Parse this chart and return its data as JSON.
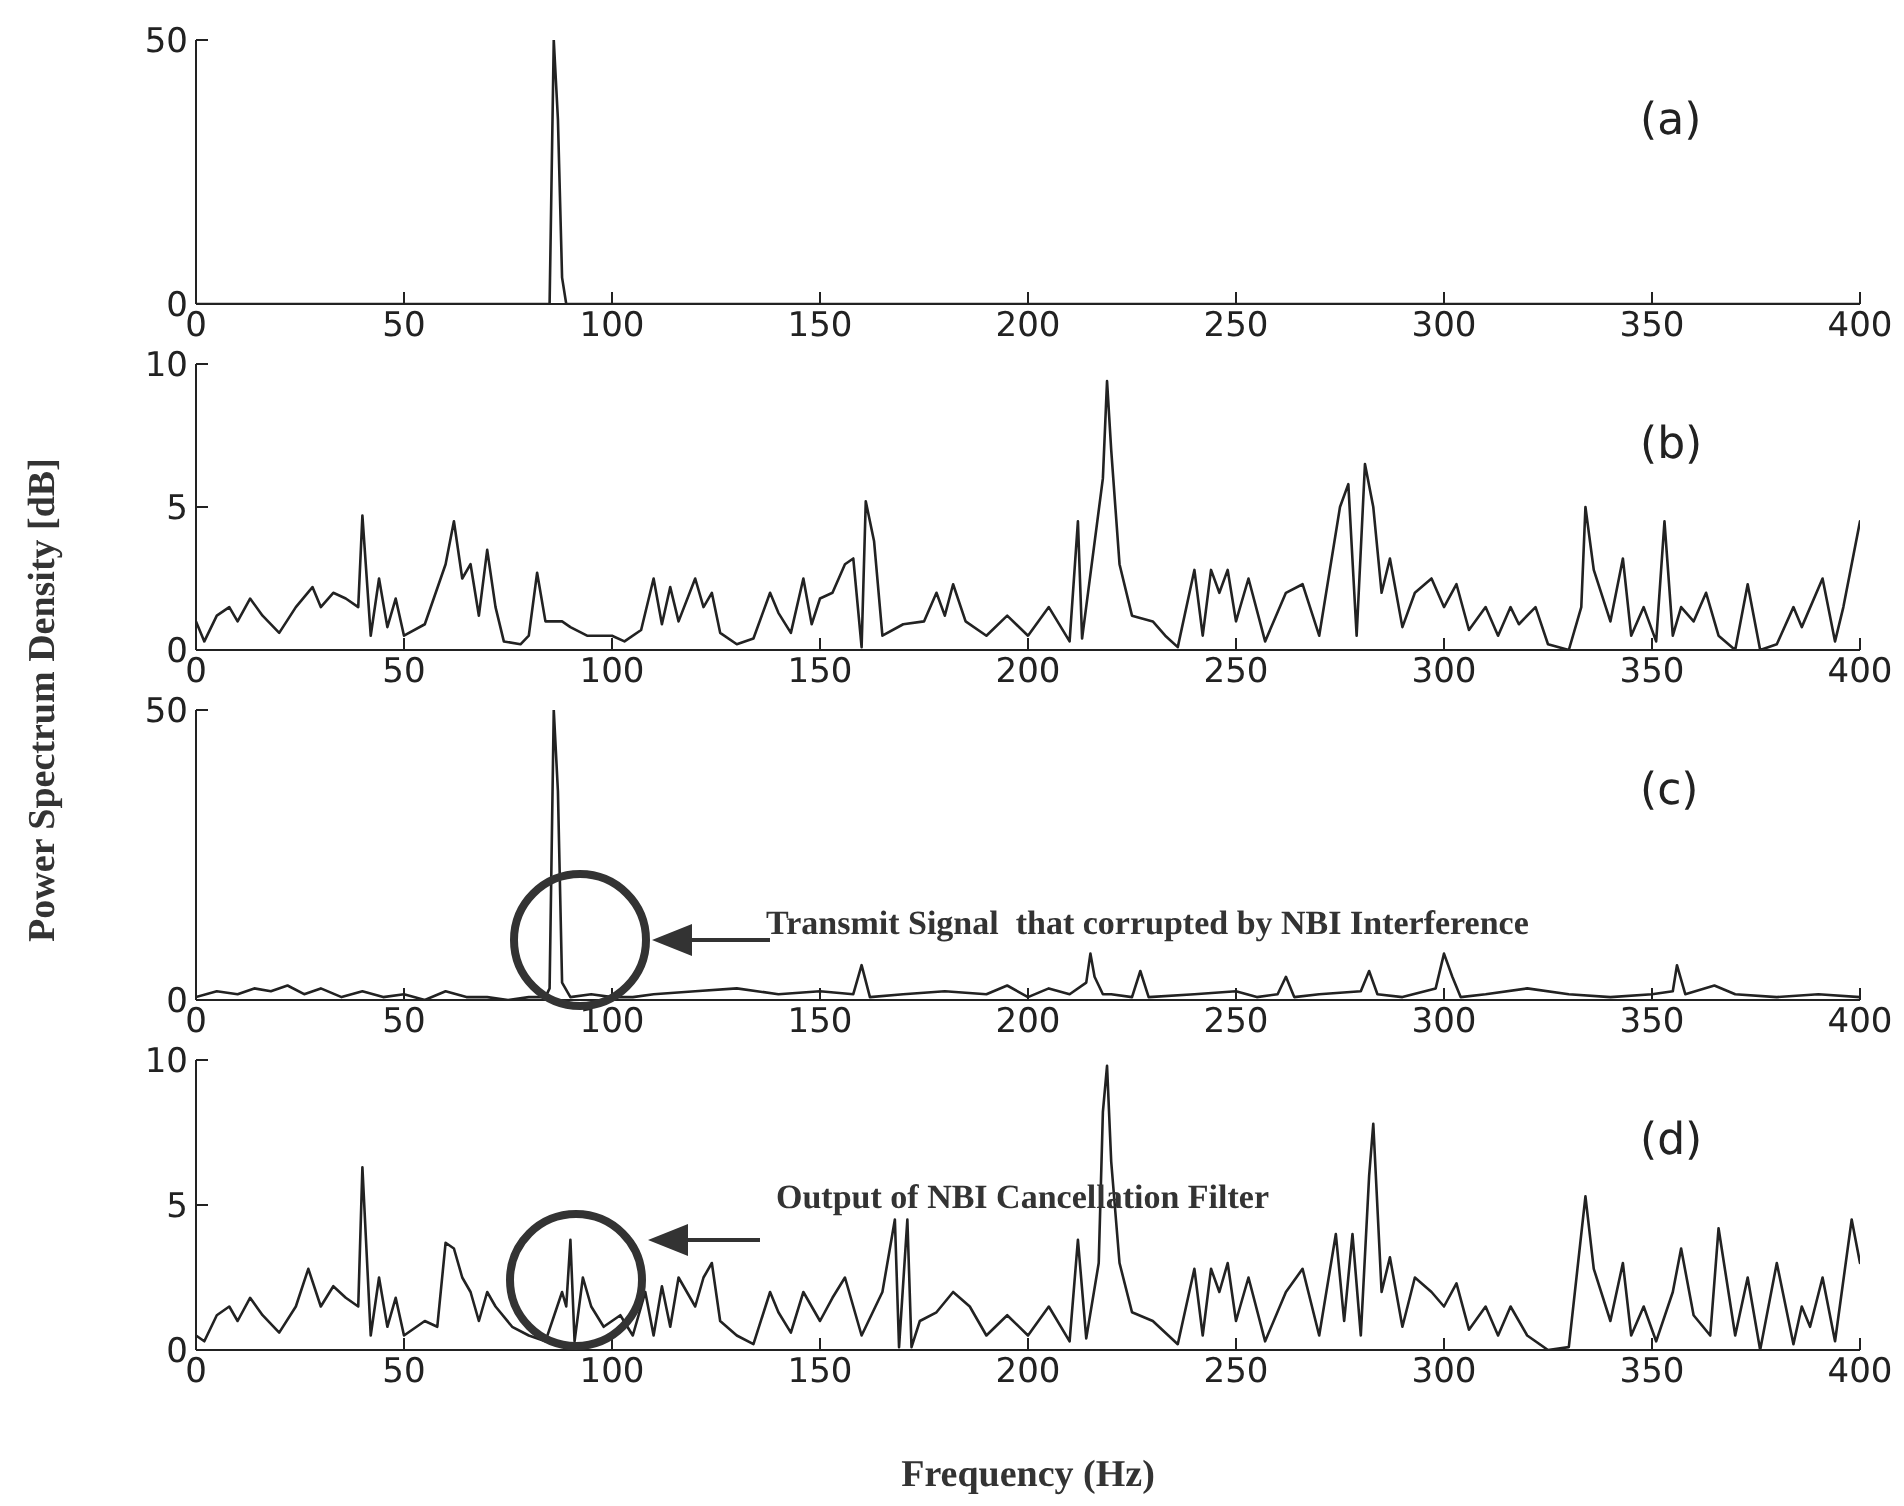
{
  "chart_data": [
    {
      "type": "line",
      "title": "(a)",
      "ylabel": "Power Spectrum Density [dB]",
      "xlim": [
        0,
        400
      ],
      "xticks": [
        0,
        50,
        100,
        150,
        200,
        250,
        300,
        350,
        400
      ],
      "ylim": [
        0,
        50
      ],
      "yticks": [
        0,
        50
      ],
      "marker": "none",
      "series": [
        {
          "color": "#222222",
          "x": [
            0,
            84,
            85,
            86,
            87,
            88,
            89,
            400
          ],
          "values": [
            0,
            0,
            0,
            50,
            35,
            5,
            0,
            0
          ]
        }
      ]
    },
    {
      "type": "line",
      "title": "(b)",
      "xlim": [
        0,
        400
      ],
      "xticks": [
        0,
        50,
        100,
        150,
        200,
        250,
        300,
        350,
        400
      ],
      "ylim": [
        0,
        10
      ],
      "yticks": [
        0,
        5,
        10
      ],
      "marker": "none",
      "series": [
        {
          "color": "#222222",
          "x": [
            0,
            2,
            5,
            8,
            10,
            13,
            16,
            20,
            24,
            28,
            30,
            33,
            36,
            39,
            40,
            42,
            44,
            46,
            48,
            50,
            55,
            60,
            62,
            64,
            66,
            68,
            70,
            72,
            74,
            78,
            80,
            82,
            84,
            88,
            90,
            94,
            100,
            103,
            107,
            110,
            112,
            114,
            116,
            120,
            122,
            124,
            126,
            130,
            134,
            138,
            140,
            143,
            146,
            148,
            150,
            153,
            156,
            158,
            160,
            161,
            163,
            165,
            170,
            175,
            178,
            180,
            182,
            185,
            190,
            195,
            200,
            205,
            210,
            212,
            213,
            218,
            219,
            220,
            222,
            225,
            230,
            233,
            236,
            240,
            242,
            244,
            246,
            248,
            250,
            253,
            257,
            262,
            266,
            270,
            275,
            277,
            279,
            281,
            283,
            285,
            287,
            290,
            293,
            297,
            300,
            303,
            306,
            310,
            313,
            316,
            318,
            322,
            325,
            330,
            333,
            334,
            336,
            340,
            343,
            345,
            348,
            351,
            353,
            355,
            357,
            360,
            363,
            366,
            370,
            373,
            376,
            380,
            384,
            386,
            391,
            394,
            396,
            400
          ],
          "values": [
            1,
            0.3,
            1.2,
            1.5,
            1,
            1.8,
            1.2,
            0.6,
            1.5,
            2.2,
            1.5,
            2,
            1.8,
            1.5,
            4.7,
            0.5,
            2.5,
            0.8,
            1.8,
            0.5,
            0.9,
            3,
            4.5,
            2.5,
            3,
            1.2,
            3.5,
            1.5,
            0.3,
            0.2,
            0.5,
            2.7,
            1,
            1,
            0.8,
            0.5,
            0.5,
            0.3,
            0.7,
            2.5,
            0.9,
            2.2,
            1,
            2.5,
            1.5,
            2,
            0.6,
            0.2,
            0.4,
            2,
            1.3,
            0.6,
            2.5,
            0.9,
            1.8,
            2,
            3,
            3.2,
            0.1,
            5.2,
            3.8,
            0.5,
            0.9,
            1,
            2,
            1.2,
            2.3,
            1,
            0.5,
            1.2,
            0.5,
            1.5,
            0.3,
            4.5,
            0.4,
            6,
            9.4,
            7,
            3,
            1.2,
            1,
            0.5,
            0.1,
            2.8,
            0.5,
            2.8,
            2,
            2.8,
            1,
            2.5,
            0.3,
            2,
            2.3,
            0.5,
            5,
            5.8,
            0.5,
            6.5,
            5,
            2,
            3.2,
            0.8,
            2,
            2.5,
            1.5,
            2.3,
            0.7,
            1.5,
            0.5,
            1.5,
            0.9,
            1.5,
            0.2,
            0,
            1.5,
            5,
            2.8,
            1,
            3.2,
            0.5,
            1.5,
            0.3,
            4.5,
            0.5,
            1.5,
            1,
            2,
            0.5,
            0,
            2.3,
            0,
            0.2,
            1.5,
            0.8,
            2.5,
            0.3,
            1.5,
            4.5
          ]
        }
      ]
    },
    {
      "type": "line",
      "title": "(c)",
      "annotations": [
        "Transmit Signal  that corrupted by NBI Interference"
      ],
      "xlim": [
        0,
        400
      ],
      "xticks": [
        0,
        50,
        100,
        150,
        200,
        250,
        300,
        350,
        400
      ],
      "ylim": [
        0,
        50
      ],
      "yticks": [
        0,
        50
      ],
      "marker": "none",
      "series": [
        {
          "color": "#222222",
          "x": [
            0,
            5,
            10,
            14,
            18,
            22,
            26,
            30,
            35,
            40,
            45,
            50,
            55,
            60,
            65,
            70,
            75,
            80,
            84,
            85,
            86,
            87,
            88,
            90,
            95,
            100,
            105,
            110,
            120,
            130,
            140,
            150,
            158,
            160,
            162,
            170,
            180,
            190,
            195,
            200,
            205,
            210,
            214,
            215,
            216,
            218,
            220,
            225,
            227,
            229,
            240,
            250,
            255,
            260,
            262,
            264,
            270,
            280,
            282,
            284,
            290,
            298,
            300,
            302,
            304,
            310,
            320,
            330,
            340,
            350,
            355,
            356,
            358,
            365,
            370,
            380,
            390,
            400
          ],
          "values": [
            0.5,
            1.5,
            1,
            2,
            1.5,
            2.5,
            1,
            2,
            0.5,
            1.5,
            0.5,
            1,
            0,
            1.5,
            0.5,
            0.5,
            0,
            0.5,
            0.5,
            2,
            50,
            36,
            3,
            0.5,
            1,
            0.5,
            0.5,
            1,
            1.5,
            2,
            1,
            1.5,
            1,
            6,
            0.5,
            1,
            1.5,
            1,
            2.5,
            0.5,
            2,
            1,
            3,
            8,
            4,
            1,
            1,
            0.5,
            5,
            0.5,
            1,
            1.5,
            0.5,
            1,
            4,
            0.5,
            1,
            1.5,
            5,
            1,
            0.5,
            2,
            8,
            4,
            0.5,
            1,
            2,
            1,
            0.5,
            1,
            1.5,
            6,
            1,
            2.5,
            1,
            0.5,
            1,
            0.5
          ]
        }
      ]
    },
    {
      "type": "line",
      "title": "(d)",
      "xlabel": "Frequency (Hz)",
      "annotations": [
        "Output of NBI Cancellation Filter"
      ],
      "xlim": [
        0,
        400
      ],
      "xticks": [
        0,
        50,
        100,
        150,
        200,
        250,
        300,
        350,
        400
      ],
      "ylim": [
        0,
        10
      ],
      "yticks": [
        0,
        5,
        10
      ],
      "marker": "none",
      "series": [
        {
          "color": "#222222",
          "x": [
            0,
            2,
            5,
            8,
            10,
            13,
            16,
            20,
            24,
            27,
            30,
            33,
            36,
            39,
            40,
            42,
            44,
            46,
            48,
            50,
            55,
            58,
            60,
            62,
            64,
            66,
            68,
            70,
            72,
            76,
            80,
            84,
            88,
            89,
            90,
            91,
            93,
            95,
            98,
            102,
            105,
            108,
            110,
            112,
            114,
            116,
            120,
            122,
            124,
            126,
            130,
            134,
            138,
            140,
            143,
            146,
            150,
            153,
            156,
            160,
            165,
            168,
            169,
            171,
            172,
            174,
            178,
            182,
            186,
            190,
            195,
            200,
            205,
            210,
            212,
            214,
            217,
            218,
            219,
            220,
            222,
            225,
            230,
            236,
            240,
            242,
            244,
            246,
            248,
            250,
            253,
            257,
            262,
            266,
            270,
            274,
            276,
            278,
            280,
            282,
            283,
            285,
            287,
            290,
            293,
            297,
            300,
            303,
            306,
            310,
            313,
            316,
            320,
            325,
            330,
            334,
            336,
            340,
            343,
            345,
            348,
            351,
            355,
            357,
            360,
            364,
            366,
            370,
            373,
            376,
            380,
            384,
            386,
            388,
            391,
            394,
            398,
            400
          ],
          "values": [
            0.5,
            0.3,
            1.2,
            1.5,
            1,
            1.8,
            1.2,
            0.6,
            1.5,
            2.8,
            1.5,
            2.2,
            1.8,
            1.5,
            6.3,
            0.5,
            2.5,
            0.8,
            1.8,
            0.5,
            1,
            0.8,
            3.7,
            3.5,
            2.5,
            2,
            1,
            2,
            1.5,
            0.8,
            0.5,
            0.3,
            2,
            1.5,
            3.8,
            0.3,
            2.5,
            1.5,
            0.8,
            1.2,
            0.5,
            2,
            0.5,
            2.2,
            0.8,
            2.5,
            1.5,
            2.5,
            3,
            1,
            0.5,
            0.2,
            2,
            1.3,
            0.6,
            2,
            1,
            1.8,
            2.5,
            0.5,
            2,
            4.5,
            0.1,
            4.5,
            0.1,
            1,
            1.3,
            2,
            1.5,
            0.5,
            1.2,
            0.5,
            1.5,
            0.3,
            3.8,
            0.4,
            3,
            8.2,
            9.8,
            6.5,
            3,
            1.3,
            1,
            0.2,
            2.8,
            0.5,
            2.8,
            2,
            3,
            1,
            2.5,
            0.3,
            2,
            2.8,
            0.5,
            4,
            1,
            4,
            0.5,
            6,
            7.8,
            2,
            3.2,
            0.8,
            2.5,
            2,
            1.5,
            2.3,
            0.7,
            1.5,
            0.5,
            1.5,
            0.5,
            0,
            0.1,
            5.3,
            2.8,
            1,
            3,
            0.5,
            1.5,
            0.3,
            2,
            3.5,
            1.2,
            0.5,
            4.2,
            0.5,
            2.5,
            0,
            3,
            0.2,
            1.5,
            0.8,
            2.5,
            0.3,
            4.5,
            3
          ]
        }
      ]
    }
  ]
}
